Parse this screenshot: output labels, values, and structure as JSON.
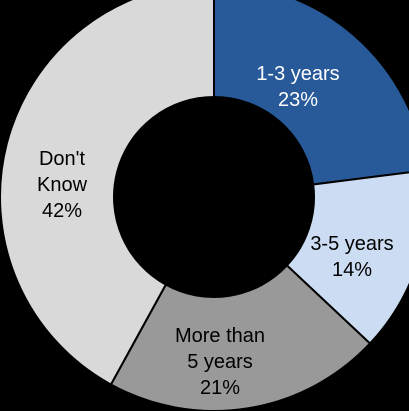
{
  "chart_data": {
    "type": "pie",
    "style": "donut",
    "title": "",
    "background_color": "#000000",
    "hole_color": "#000000",
    "slices": [
      {
        "label": "1-3 years",
        "value": 23,
        "value_label": "23%",
        "color": "#285a9a",
        "text_color": "#ffffff"
      },
      {
        "label": "3-5 years",
        "value": 14,
        "value_label": "14%",
        "color": "#ccdcf2",
        "text_color": "#000000"
      },
      {
        "label": "More than 5 years",
        "value": 21,
        "value_label": "21%",
        "color": "#999999",
        "text_color": "#000000"
      },
      {
        "label": "Don't Know",
        "value": 42,
        "value_label": "42%",
        "color": "#d9d9d9",
        "text_color": "#000000"
      }
    ]
  }
}
